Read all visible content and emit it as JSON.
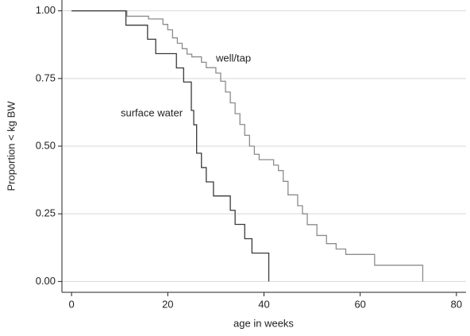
{
  "chart_data": {
    "type": "step",
    "x_label": "age in weeks",
    "y_label": "Proportion < kg BW",
    "annotations": [
      "well/tap",
      "surface water"
    ],
    "xlim": [
      -2,
      82
    ],
    "xticks": [
      0,
      20,
      40,
      60,
      80
    ],
    "ylim": [
      -0.04,
      1.04
    ],
    "yticks": [
      {
        "value": 0,
        "label": "0.00"
      },
      {
        "value": 0.25,
        "label": "0.25"
      },
      {
        "value": 0.5,
        "label": "0.50"
      },
      {
        "value": 0.75,
        "label": "0.75"
      },
      {
        "value": 1,
        "label": "1.00"
      }
    ],
    "grid": true,
    "series": [
      {
        "name": "well/tap",
        "color": "#8c8c8c",
        "x": [
          0,
          11.5,
          16,
          19,
          20,
          21,
          22,
          23,
          24,
          25,
          27,
          28,
          30,
          31,
          32,
          33,
          34,
          35,
          36,
          37,
          38,
          39,
          42,
          43,
          44,
          45,
          47,
          48,
          49,
          51,
          53,
          55,
          57,
          63,
          73
        ],
        "values": [
          1,
          0.98,
          0.97,
          0.95,
          0.93,
          0.9,
          0.88,
          0.86,
          0.84,
          0.83,
          0.81,
          0.79,
          0.77,
          0.74,
          0.7,
          0.66,
          0.62,
          0.58,
          0.54,
          0.5,
          0.47,
          0.45,
          0.43,
          0.41,
          0.37,
          0.32,
          0.28,
          0.25,
          0.21,
          0.17,
          0.14,
          0.12,
          0.1,
          0.06,
          0
        ]
      },
      {
        "name": "surface water",
        "color": "#3a3a3a",
        "x": [
          0,
          11.3,
          15.8,
          17.5,
          21.8,
          23.3,
          24.9,
          25.4,
          26,
          27,
          28,
          29.5,
          33,
          34,
          36,
          37.5,
          41
        ],
        "values": [
          1,
          0.947,
          0.895,
          0.842,
          0.789,
          0.737,
          0.632,
          0.579,
          0.474,
          0.421,
          0.368,
          0.316,
          0.263,
          0.211,
          0.158,
          0.105,
          0
        ]
      }
    ]
  }
}
